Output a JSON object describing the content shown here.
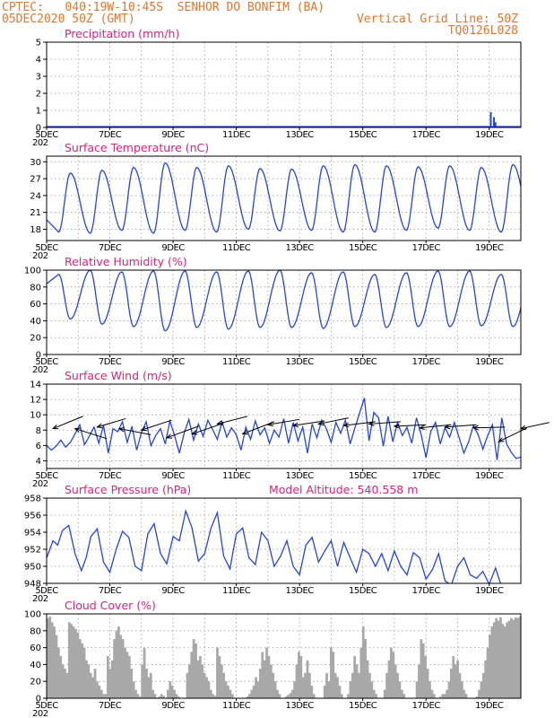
{
  "header": {
    "line1": "CPTEC:   040:19W-10:45S  SENHOR DO BONFIM (BA)",
    "line2": "05DEC2020 50Z (GMT)",
    "grid_note": "Vertical Grid Line: 50Z",
    "code": "TQ0126L028"
  },
  "x_axis": {
    "start_day": 5,
    "end_day": 20,
    "tick_days": [
      5,
      7,
      9,
      11,
      13,
      15,
      17,
      19
    ],
    "tick_labels": [
      "5DEC",
      "7DEC",
      "9DEC",
      "11DEC",
      "13DEC",
      "15DEC",
      "17DEC",
      "19DEC"
    ],
    "year_stub": "202"
  },
  "model_altitude": "Model Altitude: 540.558 m",
  "colors": {
    "line": "#2244ee",
    "cloud": "#a8a8a8",
    "wind_arrow": "#000000",
    "header": "#e8732a",
    "title": "#e0207a"
  },
  "chart_data": [
    {
      "type": "bar",
      "title": "Precipitation (mm/h)",
      "ylim": [
        0,
        5
      ],
      "yticks": [
        0,
        1,
        2,
        3,
        4,
        5
      ],
      "baseline": 0.05,
      "events": [
        {
          "day": 19.05,
          "value": 0.9
        },
        {
          "day": 19.15,
          "value": 0.6
        },
        {
          "day": 19.2,
          "value": 0.3
        }
      ]
    },
    {
      "type": "line",
      "title": "Surface Temperature (nC)",
      "ylim": [
        16,
        31
      ],
      "yticks": [
        18,
        21,
        24,
        27,
        30
      ],
      "diurnal": {
        "min_day_offset": 0.38,
        "max_day_offset": 0.75,
        "mins": [
          17.5,
          17.3,
          17.8,
          17.3,
          17.8,
          17.5,
          18.0,
          17.7,
          17.8,
          17.5,
          17.5,
          17.8,
          18.2,
          17.8,
          17.5,
          18.2
        ],
        "maxs": [
          28,
          28.5,
          29,
          29.8,
          29,
          29.3,
          28.8,
          28.7,
          29.3,
          29.5,
          29.3,
          29.1,
          29.3,
          29.0,
          29.5,
          28.6
        ]
      }
    },
    {
      "type": "line",
      "title": "Relative Humidity (%)",
      "ylim": [
        0,
        100
      ],
      "yticks": [
        0,
        20,
        40,
        60,
        80,
        100
      ],
      "diurnal": {
        "min_day_offset": 0.75,
        "max_day_offset": 0.38,
        "mins": [
          42,
          36,
          33,
          28,
          32,
          30,
          32,
          32,
          31,
          33,
          32,
          33,
          33,
          34,
          33,
          40
        ],
        "maxs": [
          95,
          100,
          98,
          99,
          99,
          98,
          99,
          100,
          97,
          98,
          95,
          97,
          99,
          99,
          95,
          99
        ]
      }
    },
    {
      "type": "line",
      "title": "Surface Wind (m/s)",
      "ylim": [
        3,
        14
      ],
      "yticks": [
        4,
        6,
        8,
        10,
        12,
        14
      ],
      "points": [
        [
          5.0,
          6.0
        ],
        [
          5.15,
          5.4
        ],
        [
          5.3,
          5.9
        ],
        [
          5.45,
          6.7
        ],
        [
          5.6,
          5.8
        ],
        [
          5.75,
          6.4
        ],
        [
          5.9,
          7.5
        ],
        [
          6.05,
          8.7
        ],
        [
          6.2,
          6.1
        ],
        [
          6.35,
          7.2
        ],
        [
          6.5,
          8.4
        ],
        [
          6.65,
          6.3
        ],
        [
          6.8,
          8.6
        ],
        [
          6.95,
          5.0
        ],
        [
          7.1,
          8.2
        ],
        [
          7.25,
          7.8
        ],
        [
          7.4,
          9.1
        ],
        [
          7.55,
          6.4
        ],
        [
          7.7,
          8.5
        ],
        [
          7.85,
          5.4
        ],
        [
          8.0,
          7.7
        ],
        [
          8.15,
          9.1
        ],
        [
          8.3,
          6.0
        ],
        [
          8.45,
          7.3
        ],
        [
          8.6,
          8.2
        ],
        [
          8.75,
          6.2
        ],
        [
          8.9,
          9.2
        ],
        [
          9.05,
          7.3
        ],
        [
          9.2,
          5.0
        ],
        [
          9.35,
          7.6
        ],
        [
          9.5,
          9.4
        ],
        [
          9.65,
          6.7
        ],
        [
          9.8,
          8.8
        ],
        [
          9.95,
          7.2
        ],
        [
          10.1,
          9.3
        ],
        [
          10.25,
          8.1
        ],
        [
          10.4,
          6.8
        ],
        [
          10.55,
          9.1
        ],
        [
          10.7,
          7.1
        ],
        [
          10.85,
          8.3
        ],
        [
          11.0,
          7.4
        ],
        [
          11.15,
          5.4
        ],
        [
          11.3,
          8.4
        ],
        [
          11.45,
          6.8
        ],
        [
          11.6,
          9.2
        ],
        [
          11.75,
          7.4
        ],
        [
          11.9,
          8.3
        ],
        [
          12.05,
          6.3
        ],
        [
          12.2,
          8.0
        ],
        [
          12.35,
          7.1
        ],
        [
          12.5,
          9.5
        ],
        [
          12.65,
          6.3
        ],
        [
          12.8,
          9.0
        ],
        [
          12.95,
          6.6
        ],
        [
          13.1,
          8.4
        ],
        [
          13.25,
          5.0
        ],
        [
          13.4,
          8.8
        ],
        [
          13.55,
          7.0
        ],
        [
          13.7,
          9.3
        ],
        [
          13.85,
          8.2
        ],
        [
          14.0,
          6.4
        ],
        [
          14.15,
          9.0
        ],
        [
          14.3,
          7.6
        ],
        [
          14.45,
          9.3
        ],
        [
          14.6,
          6.2
        ],
        [
          14.75,
          8.3
        ],
        [
          14.9,
          10.2
        ],
        [
          15.05,
          12.2
        ],
        [
          15.2,
          6.6
        ],
        [
          15.35,
          10.3
        ],
        [
          15.5,
          9.6
        ],
        [
          15.65,
          5.9
        ],
        [
          15.8,
          9.8
        ],
        [
          15.95,
          6.5
        ],
        [
          16.1,
          9.0
        ],
        [
          16.25,
          7.3
        ],
        [
          16.4,
          8.4
        ],
        [
          16.55,
          6.3
        ],
        [
          16.7,
          9.6
        ],
        [
          16.85,
          7.4
        ],
        [
          17.0,
          4.4
        ],
        [
          17.15,
          7.8
        ],
        [
          17.3,
          9.0
        ],
        [
          17.45,
          6.2
        ],
        [
          17.6,
          8.3
        ],
        [
          17.75,
          7.1
        ],
        [
          17.9,
          9.0
        ],
        [
          18.05,
          7.0
        ],
        [
          18.2,
          5.0
        ],
        [
          18.35,
          6.5
        ],
        [
          18.5,
          8.6
        ],
        [
          18.65,
          7.4
        ],
        [
          18.8,
          5.5
        ],
        [
          18.95,
          7.3
        ],
        [
          19.1,
          8.7
        ],
        [
          19.25,
          4.1
        ],
        [
          19.4,
          9.6
        ],
        [
          19.55,
          6.2
        ],
        [
          19.7,
          5.1
        ],
        [
          19.85,
          4.3
        ],
        [
          20.0,
          4.5
        ]
      ],
      "arrows": [
        {
          "day": 5.2,
          "value": 8.2,
          "dx": 0.95,
          "dy": 1.6
        },
        {
          "day": 5.9,
          "value": 8.2,
          "dx": 1.0,
          "dy": -1.3
        },
        {
          "day": 6.6,
          "value": 8.4,
          "dx": 0.9,
          "dy": 1.1
        },
        {
          "day": 7.3,
          "value": 8.2,
          "dx": 1.0,
          "dy": -0.8
        },
        {
          "day": 8.0,
          "value": 8.0,
          "dx": 0.95,
          "dy": 1.3
        },
        {
          "day": 8.8,
          "value": 7.0,
          "dx": 1.0,
          "dy": 1.5
        },
        {
          "day": 9.6,
          "value": 7.5,
          "dx": 1.0,
          "dy": 1.4
        },
        {
          "day": 10.4,
          "value": 8.8,
          "dx": 0.95,
          "dy": 1.0
        },
        {
          "day": 11.2,
          "value": 7.5,
          "dx": 1.0,
          "dy": 1.6
        },
        {
          "day": 12.0,
          "value": 8.7,
          "dx": 1.0,
          "dy": 0.7
        },
        {
          "day": 12.8,
          "value": 8.6,
          "dx": 1.0,
          "dy": 0.6
        },
        {
          "day": 13.6,
          "value": 8.8,
          "dx": 0.95,
          "dy": 0.8
        },
        {
          "day": 14.4,
          "value": 8.6,
          "dx": 1.0,
          "dy": 0.5
        },
        {
          "day": 15.2,
          "value": 8.8,
          "dx": 1.0,
          "dy": 0.3
        },
        {
          "day": 16.0,
          "value": 8.5,
          "dx": 1.0,
          "dy": 0.2
        },
        {
          "day": 16.8,
          "value": 8.3,
          "dx": 1.0,
          "dy": 0.4
        },
        {
          "day": 17.6,
          "value": 8.4,
          "dx": 1.0,
          "dy": 0.3
        },
        {
          "day": 18.5,
          "value": 8.3,
          "dx": 1.0,
          "dy": 0.1
        },
        {
          "day": 19.3,
          "value": 6.5,
          "dx": 0.9,
          "dy": 1.8
        },
        {
          "day": 20.0,
          "value": 8.2,
          "dx": 0.9,
          "dy": 0.8
        }
      ]
    },
    {
      "type": "line",
      "title": "Surface Pressure (hPa)",
      "ylim": [
        948,
        958
      ],
      "yticks": [
        948,
        950,
        952,
        954,
        956,
        958
      ],
      "points": [
        [
          5.0,
          951.0
        ],
        [
          5.2,
          953.0
        ],
        [
          5.35,
          952.5
        ],
        [
          5.5,
          954.2
        ],
        [
          5.7,
          954.8
        ],
        [
          5.9,
          951.5
        ],
        [
          6.1,
          949.5
        ],
        [
          6.25,
          951.0
        ],
        [
          6.4,
          953.5
        ],
        [
          6.6,
          954.4
        ],
        [
          6.8,
          950.5
        ],
        [
          7.0,
          949.3
        ],
        [
          7.2,
          952.0
        ],
        [
          7.4,
          954.1
        ],
        [
          7.6,
          953.4
        ],
        [
          7.8,
          950.0
        ],
        [
          8.0,
          949.5
        ],
        [
          8.2,
          953.8
        ],
        [
          8.4,
          955.0
        ],
        [
          8.6,
          951.5
        ],
        [
          8.8,
          950.3
        ],
        [
          9.0,
          953.5
        ],
        [
          9.2,
          953.0
        ],
        [
          9.4,
          956.5
        ],
        [
          9.6,
          954.5
        ],
        [
          9.8,
          950.6
        ],
        [
          10.0,
          951.5
        ],
        [
          10.2,
          954.5
        ],
        [
          10.4,
          956.3
        ],
        [
          10.6,
          951.2
        ],
        [
          10.8,
          949.7
        ],
        [
          11.0,
          953.8
        ],
        [
          11.2,
          954.5
        ],
        [
          11.4,
          951.0
        ],
        [
          11.6,
          950.2
        ],
        [
          11.8,
          954.0
        ],
        [
          12.0,
          953.0
        ],
        [
          12.2,
          950.0
        ],
        [
          12.4,
          951.2
        ],
        [
          12.6,
          953.0
        ],
        [
          12.8,
          950.0
        ],
        [
          13.0,
          949.0
        ],
        [
          13.2,
          952.5
        ],
        [
          13.4,
          953.4
        ],
        [
          13.6,
          950.5
        ],
        [
          13.8,
          951.8
        ],
        [
          14.0,
          953.0
        ],
        [
          14.2,
          950.0
        ],
        [
          14.4,
          952.8
        ],
        [
          14.6,
          951.0
        ],
        [
          14.8,
          949.3
        ],
        [
          15.0,
          952.0
        ],
        [
          15.2,
          951.5
        ],
        [
          15.4,
          950.0
        ],
        [
          15.6,
          951.5
        ],
        [
          15.8,
          949.5
        ],
        [
          16.0,
          951.8
        ],
        [
          16.2,
          950.0
        ],
        [
          16.4,
          949.0
        ],
        [
          16.6,
          951.6
        ],
        [
          16.8,
          951.0
        ],
        [
          17.0,
          948.5
        ],
        [
          17.2,
          949.6
        ],
        [
          17.4,
          951.5
        ],
        [
          17.6,
          948.3
        ],
        [
          17.8,
          947.8
        ],
        [
          18.0,
          950.0
        ],
        [
          18.2,
          951.0
        ],
        [
          18.4,
          949.0
        ],
        [
          18.6,
          948.6
        ],
        [
          18.8,
          949.4
        ],
        [
          19.0,
          947.9
        ],
        [
          19.2,
          949.8
        ],
        [
          19.4,
          947.5
        ],
        [
          19.6,
          947.9
        ]
      ]
    },
    {
      "type": "bar",
      "title": "Cloud Cover (%)",
      "ylim": [
        0,
        100
      ],
      "yticks": [
        0,
        20,
        40,
        60,
        80,
        100
      ],
      "values": [
        95,
        97,
        90,
        85,
        75,
        60,
        50,
        40,
        35,
        30,
        90,
        88,
        85,
        82,
        78,
        70,
        65,
        60,
        45,
        40,
        30,
        25,
        35,
        20,
        15,
        10,
        5,
        5,
        50,
        35,
        45,
        70,
        80,
        85,
        75,
        70,
        60,
        55,
        50,
        35,
        20,
        10,
        5,
        2,
        40,
        60,
        35,
        25,
        30,
        10,
        5,
        0,
        2,
        5,
        3,
        0,
        10,
        20,
        15,
        10,
        5,
        2,
        0,
        0,
        0,
        30,
        40,
        55,
        70,
        65,
        45,
        50,
        40,
        30,
        25,
        20,
        10,
        5,
        3,
        60,
        50,
        40,
        30,
        20,
        15,
        10,
        5,
        0,
        0,
        0,
        0,
        0,
        0,
        2,
        5,
        10,
        15,
        25,
        20,
        35,
        55,
        45,
        60,
        50,
        40,
        30,
        20,
        10,
        5,
        0,
        0,
        2,
        4,
        6,
        10,
        20,
        40,
        55,
        50,
        25,
        30,
        45,
        30,
        15,
        5,
        0,
        0,
        0,
        0,
        15,
        30,
        20,
        60,
        55,
        30,
        25,
        15,
        5,
        0,
        0,
        5,
        20,
        30,
        50,
        40,
        30,
        60,
        85,
        70,
        45,
        30,
        20,
        10,
        5,
        0,
        0,
        0,
        10,
        30,
        45,
        60,
        55,
        40,
        30,
        20,
        10,
        5,
        0,
        0,
        0,
        0,
        0,
        20,
        40,
        70,
        65,
        50,
        35,
        20,
        10,
        5,
        0,
        0,
        2,
        5,
        5,
        10,
        20,
        35,
        50,
        40,
        45,
        30,
        20,
        10,
        5,
        0,
        0,
        0,
        0,
        2,
        10,
        20,
        30,
        45,
        60,
        75,
        85,
        90,
        95,
        92,
        96,
        88,
        85,
        90,
        92,
        95,
        93,
        96,
        95,
        97
      ]
    }
  ]
}
